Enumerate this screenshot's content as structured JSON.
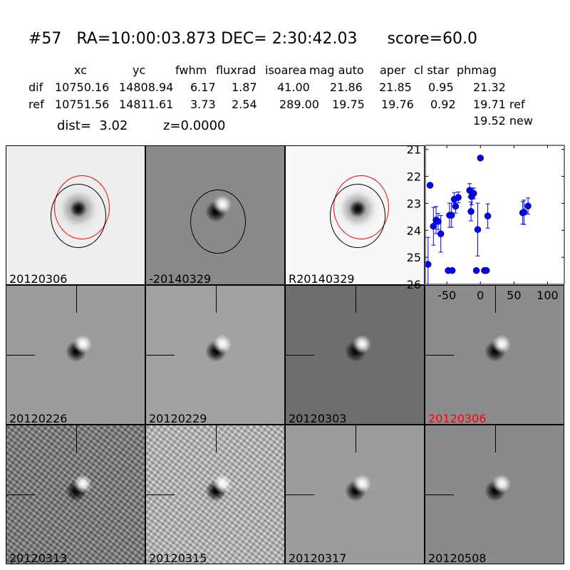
{
  "header": {
    "title": "#57   RA=10:00:03.873 DEC= 2:30:42.03      score=60.0",
    "columns": [
      "xc",
      "yc",
      "fwhm",
      "fluxrad",
      "isoarea",
      "mag auto",
      "aper",
      "cl star",
      "phmag"
    ],
    "rows": [
      {
        "label": "dif",
        "values": [
          "10750.16",
          "14808.94",
          "6.17",
          "1.87",
          "41.00",
          "21.86",
          "21.85",
          "0.95",
          "21.32"
        ]
      },
      {
        "label": "ref",
        "values": [
          "10751.56",
          "14811.61",
          "3.73",
          "2.54",
          "289.00",
          "19.75",
          "19.76",
          "0.92",
          "19.71 ref"
        ]
      }
    ],
    "extra_phmag": "19.52 new",
    "dist": "dist=  3.02",
    "z": "z=0.0000"
  },
  "panels": [
    {
      "label": "20120306",
      "bg": "#eeeeee",
      "type": "star",
      "circles": [
        "red",
        "black"
      ]
    },
    {
      "label": "-20140329",
      "bg": "#8a8a8a",
      "type": "dipole",
      "circles": [
        "black"
      ]
    },
    {
      "label": "R20140329",
      "bg": "#f8f8f8",
      "type": "star",
      "circles": [
        "red",
        "black"
      ]
    },
    {
      "label": "20120226",
      "bg": "#9c9c9c",
      "type": "dipole",
      "crosshair": true
    },
    {
      "label": "20120229",
      "bg": "#a2a2a2",
      "type": "dipole",
      "crosshair": true
    },
    {
      "label": "20120303",
      "bg": "#6e6e6e",
      "type": "dipole",
      "crosshair": true
    },
    {
      "label": "20120306",
      "bg": "#8c8c8c",
      "type": "dipole",
      "crosshair": true,
      "label_color": "#ff0000"
    },
    {
      "label": "20120313",
      "bg": "#7a7a7a",
      "type": "dipole",
      "crosshair": true,
      "noisy": true
    },
    {
      "label": "20120315",
      "bg": "#c4c4c4",
      "type": "dipole",
      "crosshair": true,
      "noisy": true
    },
    {
      "label": "20120317",
      "bg": "#9c9c9c",
      "type": "dipole",
      "crosshair": true
    },
    {
      "label": "20120508",
      "bg": "#8a8a8a",
      "type": "dipole",
      "crosshair": true
    }
  ],
  "chart_data": {
    "type": "scatter",
    "xlim": [
      -82,
      125
    ],
    "ylim": [
      26,
      20.85
    ],
    "y_inverted": true,
    "xticks": [
      "-50",
      "0",
      "50",
      "100"
    ],
    "yticks": [
      "21",
      "22",
      "23",
      "24",
      "25",
      "26"
    ],
    "marker_color": "#0000ff",
    "points": [
      {
        "x": -78,
        "y": 25.26,
        "err": 1.0
      },
      {
        "x": -75,
        "y": 22.33,
        "err": 0.07
      },
      {
        "x": -70,
        "y": 23.85,
        "err": 0.7
      },
      {
        "x": -66,
        "y": 23.62,
        "err": 0.5
      },
      {
        "x": -63,
        "y": 23.67,
        "err": 0.3
      },
      {
        "x": -59,
        "y": 24.13,
        "err": 0.68
      },
      {
        "x": -48,
        "y": 25.49,
        "err": 0.05
      },
      {
        "x": -46,
        "y": 23.44,
        "err": 0.45
      },
      {
        "x": -43,
        "y": 23.44,
        "err": 0.45
      },
      {
        "x": -42,
        "y": 25.49,
        "err": 0.05
      },
      {
        "x": -39,
        "y": 22.85,
        "err": 0.25
      },
      {
        "x": -37,
        "y": 23.11,
        "err": 0.25
      },
      {
        "x": -33,
        "y": 22.78,
        "err": 0.2
      },
      {
        "x": -16,
        "y": 22.52,
        "err": 0.25
      },
      {
        "x": -14,
        "y": 23.3,
        "err": 0.35
      },
      {
        "x": -13,
        "y": 22.75,
        "err": 0.3
      },
      {
        "x": -10,
        "y": 22.63,
        "err": 0.2
      },
      {
        "x": -6,
        "y": 25.49,
        "err": 0.05
      },
      {
        "x": -4,
        "y": 23.97,
        "err": 0.98
      },
      {
        "x": 0,
        "y": 21.32,
        "err": 0.0
      },
      {
        "x": 6,
        "y": 25.49,
        "err": 0.05
      },
      {
        "x": 9,
        "y": 25.49,
        "err": 0.05
      },
      {
        "x": 11,
        "y": 23.47,
        "err": 0.45
      },
      {
        "x": 63,
        "y": 23.35,
        "err": 0.42
      },
      {
        "x": 65,
        "y": 23.33,
        "err": 0.45
      },
      {
        "x": 71,
        "y": 23.1,
        "err": 0.3
      }
    ]
  }
}
